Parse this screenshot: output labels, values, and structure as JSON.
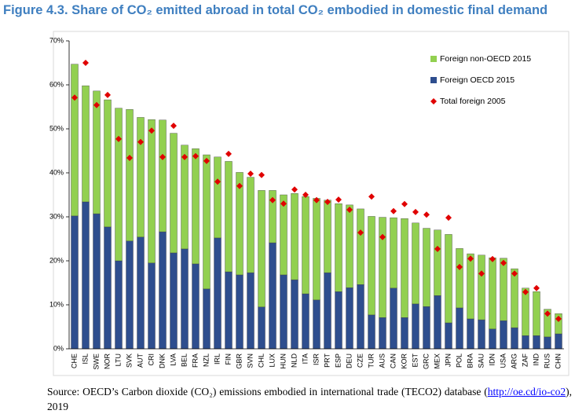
{
  "chart_data": {
    "type": "stacked_bar_scatter",
    "title": "Figure 4.3. Share of CO₂ emitted abroad in total CO₂ embodied in domestic final demand",
    "categories": [
      "CHE",
      "ISL",
      "SWE",
      "NOR",
      "LTU",
      "SVK",
      "AUT",
      "CRI",
      "DNK",
      "LVA",
      "BEL",
      "FRA",
      "NZL",
      "IRL",
      "FIN",
      "GBR",
      "SVN",
      "CHL",
      "LUX",
      "HUN",
      "NLD",
      "ITA",
      "ISR",
      "PRT",
      "ESP",
      "DEU",
      "CZE",
      "TUR",
      "AUS",
      "CAN",
      "KOR",
      "EST",
      "GRC",
      "MEX",
      "JPN",
      "POL",
      "BRA",
      "SAU",
      "IDN",
      "USA",
      "ARG",
      "ZAF",
      "IND",
      "RUS",
      "CHN"
    ],
    "series": [
      {
        "name": "Foreign OECD 2015",
        "color": "#2e4e8e",
        "kind": "bar",
        "values": [
          30.2,
          33.4,
          30.7,
          27.7,
          20.0,
          24.5,
          25.4,
          19.5,
          26.6,
          21.8,
          22.7,
          19.3,
          13.6,
          25.2,
          17.5,
          16.8,
          17.3,
          9.5,
          24.1,
          16.8,
          15.7,
          12.5,
          11.1,
          17.3,
          13.0,
          13.9,
          14.6,
          7.7,
          7.1,
          13.8,
          7.1,
          10.2,
          9.6,
          12.1,
          5.9,
          9.3,
          6.8,
          6.6,
          4.5,
          6.4,
          4.8,
          3.0,
          3.0,
          2.7,
          3.4
        ]
      },
      {
        "name": "Foreign non-OECD 2015",
        "color": "#92d050",
        "kind": "bar",
        "values": [
          34.5,
          26.4,
          27.9,
          28.9,
          34.7,
          29.9,
          27.2,
          32.6,
          25.4,
          27.2,
          23.6,
          26.2,
          30.5,
          18.4,
          25.1,
          23.3,
          21.7,
          26.5,
          11.9,
          18.2,
          19.6,
          22.1,
          23.1,
          16.5,
          20.0,
          18.8,
          17.2,
          22.4,
          22.8,
          16.0,
          22.5,
          18.4,
          17.8,
          14.9,
          20.1,
          13.5,
          14.8,
          14.7,
          16.2,
          14.2,
          13.4,
          10.8,
          10.0,
          6.3,
          4.6
        ]
      },
      {
        "name": "Total foreign 2005",
        "color": "#e00000",
        "kind": "point",
        "values": [
          57.1,
          65.0,
          55.4,
          57.7,
          47.7,
          43.4,
          47.0,
          49.6,
          43.6,
          50.7,
          43.6,
          43.8,
          42.7,
          38.0,
          44.3,
          37.0,
          39.8,
          39.5,
          33.8,
          33.0,
          36.2,
          35.0,
          33.8,
          33.4,
          33.9,
          31.6,
          26.4,
          34.6,
          25.4,
          31.3,
          32.9,
          31.1,
          30.5,
          22.7,
          29.8,
          18.6,
          20.5,
          17.1,
          20.4,
          19.5,
          17.1,
          12.9,
          13.8,
          8.0,
          6.8
        ]
      }
    ],
    "legend_order": [
      1,
      0,
      2
    ],
    "ylim": [
      0,
      70
    ],
    "yticks": [
      {
        "value": 0,
        "label": "0%"
      },
      {
        "value": 10,
        "label": "10%"
      },
      {
        "value": 20,
        "label": "20%"
      },
      {
        "value": 30,
        "label": "30%"
      },
      {
        "value": 40,
        "label": "40%"
      },
      {
        "value": 50,
        "label": "50%"
      },
      {
        "value": 60,
        "label": "60%"
      },
      {
        "value": 70,
        "label": "70%"
      }
    ],
    "source_prefix": "Source: OECD’s Carbon dioxide (CO₂) emissions embodied in international trade (TECO2) database (",
    "source_link": "http://oe.cd/io-co2",
    "source_suffix": "), 2019"
  }
}
